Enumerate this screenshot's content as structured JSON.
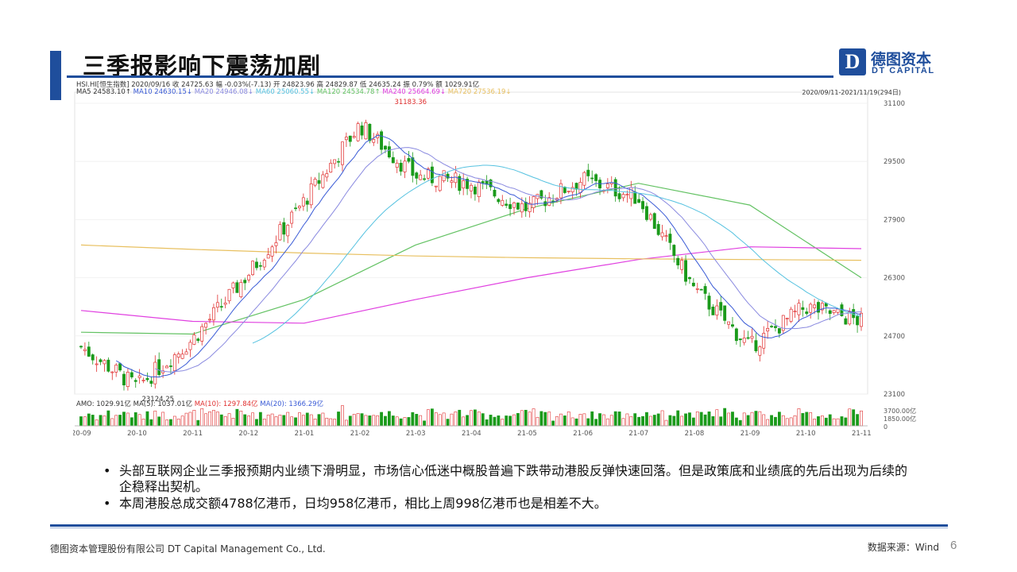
{
  "slide": {
    "title": "三季报影响下震荡加剧",
    "logo_cn": "德图资本",
    "logo_en": "DT CAPITAL",
    "logo_mark": "D",
    "page_number": "6"
  },
  "chart_info": {
    "line1": "HSI.HI[恒生指数]  2020/09/16  收 24725.63  幅 -0.03%(-7.13)  开 24823.96  高 24829.87  低 24635.24  振 0.79%  额 1029.91亿",
    "ma_labels": [
      {
        "text": "MA5 24583.10↑",
        "color": "#333333"
      },
      {
        "text": "MA10 24630.15↓",
        "color": "#3a5bd6"
      },
      {
        "text": "MA20 24946.08↓",
        "color": "#8a8ae0"
      },
      {
        "text": "MA60 25060.55↓",
        "color": "#56c2e0"
      },
      {
        "text": "MA120 24534.78↑",
        "color": "#63c263"
      },
      {
        "text": "MA240 25664.69↓",
        "color": "#e040e0"
      },
      {
        "text": "MA720 27536.19↓",
        "color": "#e8c060"
      }
    ],
    "range": "2020/09/11-2021/11/19(294日)",
    "amo_labels": [
      {
        "text": "AMO: 1029.91亿",
        "color": "#333333"
      },
      {
        "text": "MA(5): 1037.01亿",
        "color": "#333333"
      },
      {
        "text": "MA(10): 1297.84亿",
        "color": "#e03030"
      },
      {
        "text": "MA(20): 1366.29亿",
        "color": "#3a5bd6"
      }
    ]
  },
  "chart_data": {
    "type": "line",
    "title": "",
    "xlabel": "",
    "ylabel": "",
    "ylim": [
      23100,
      31100
    ],
    "y_ticks": [
      "31100",
      "29500",
      "27900",
      "26300",
      "24700",
      "23100"
    ],
    "vol_ticks": [
      "3700.00亿",
      "1850.00亿",
      "0"
    ],
    "x_ticks": [
      "20-09",
      "20-10",
      "20-11",
      "20-12",
      "21-01",
      "21-02",
      "21-03",
      "21-04",
      "21-05",
      "21-06",
      "21-07",
      "21-08",
      "21-09",
      "21-10",
      "21-11"
    ],
    "annotations": [
      {
        "text": "31183.36",
        "x": "2021-02-18",
        "y": 31183.36
      },
      {
        "text": "23124.25",
        "x": "2020-10-02",
        "y": 23124.25
      }
    ],
    "series": [
      {
        "name": "HSI",
        "color": "#e03030",
        "x": [
          "2020-09",
          "2020-10",
          "2020-11",
          "2020-12",
          "2021-01",
          "2021-02",
          "2021-03",
          "2021-04",
          "2021-05",
          "2021-06",
          "2021-07",
          "2021-08",
          "2021-09",
          "2021-10",
          "2021-11"
        ],
        "values": [
          24400,
          23300,
          24600,
          26400,
          28400,
          30500,
          29100,
          28900,
          28200,
          29000,
          28500,
          26000,
          24400,
          25500,
          25100
        ]
      },
      {
        "name": "MA120",
        "color": "#63c263",
        "x": [
          "2020-09",
          "2020-11",
          "2021-01",
          "2021-03",
          "2021-05",
          "2021-07",
          "2021-09",
          "2021-11"
        ],
        "values": [
          24800,
          24750,
          25700,
          27200,
          28200,
          28900,
          28300,
          26300
        ]
      },
      {
        "name": "MA240",
        "color": "#e040e0",
        "x": [
          "2020-09",
          "2020-11",
          "2021-01",
          "2021-03",
          "2021-05",
          "2021-07",
          "2021-09",
          "2021-11"
        ],
        "values": [
          25400,
          25100,
          25050,
          25700,
          26300,
          26800,
          27150,
          27100
        ]
      },
      {
        "name": "MA720",
        "color": "#e8c060",
        "x": [
          "2020-09",
          "2020-11",
          "2021-01",
          "2021-03",
          "2021-05",
          "2021-07",
          "2021-09",
          "2021-11"
        ],
        "values": [
          27200,
          27080,
          26980,
          26900,
          26850,
          26820,
          26800,
          26780
        ]
      }
    ]
  },
  "bullets": [
    "头部互联网企业三季报预期内业绩下滑明显，市场信心低迷中概股普遍下跌带动港股反弹快速回落。但是政策底和业绩底的先后出现为后续的企稳释出契机。",
    "本周港股总成交额4788亿港币，日均958亿港币，相比上周998亿港币也是相差不大。"
  ],
  "footer": {
    "company": "德图资本管理股份有限公司 DT Capital Management Co., Ltd.",
    "source": "数据来源：Wind"
  },
  "colors": {
    "brand": "#1f4e9c",
    "up": "#e03030",
    "down": "#1a9a1a"
  }
}
